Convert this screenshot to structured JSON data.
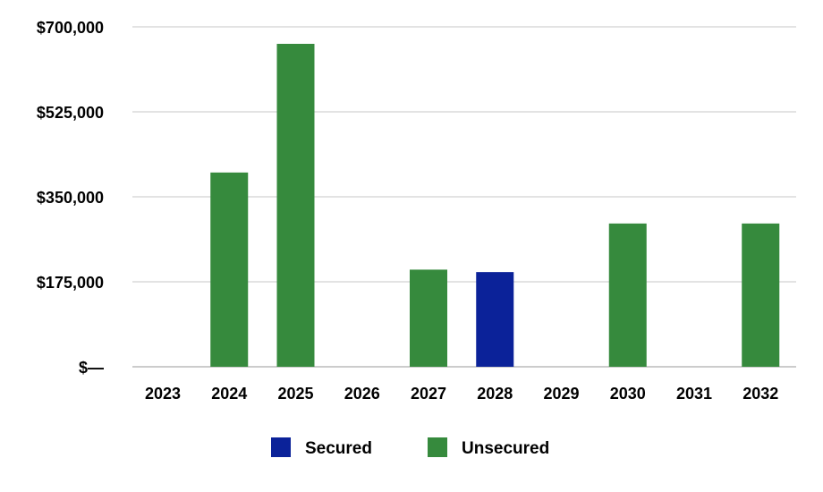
{
  "colors": {
    "Secured": "#0b2299",
    "Unsecured": "#368a3d",
    "gridline": "#e3e3e3",
    "axis": "#cccccc"
  },
  "chart_data": {
    "type": "bar",
    "stacked": true,
    "title": "",
    "xlabel": "",
    "ylabel": "",
    "categories": [
      "2023",
      "2024",
      "2025",
      "2026",
      "2027",
      "2028",
      "2029",
      "2030",
      "2031",
      "2032"
    ],
    "series": [
      {
        "name": "Secured",
        "values": [
          0,
          0,
          0,
          0,
          0,
          195000,
          0,
          0,
          0,
          0
        ]
      },
      {
        "name": "Unsecured",
        "values": [
          0,
          400000,
          665000,
          0,
          200000,
          0,
          0,
          295000,
          0,
          295000
        ]
      }
    ],
    "ylim": [
      0,
      700000
    ],
    "yticks": [
      0,
      175000,
      350000,
      525000,
      700000
    ],
    "ytick_labels": [
      "$—",
      "$175,000",
      "$350,000",
      "$525,000",
      "$700,000"
    ],
    "grid": true,
    "legend": [
      "Secured",
      "Unsecured"
    ],
    "legend_position": "bottom"
  }
}
